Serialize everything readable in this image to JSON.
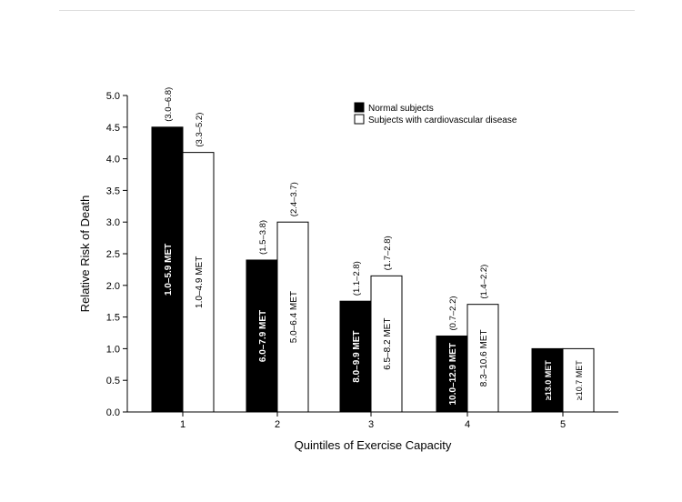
{
  "chart_data": {
    "type": "bar",
    "xlabel": "Quintiles of Exercise Capacity",
    "ylabel": "Relative Risk of Death",
    "ylim": [
      0,
      5.0
    ],
    "yticks": [
      "0.0",
      "0.5",
      "1.0",
      "1.5",
      "2.0",
      "2.5",
      "3.0",
      "3.5",
      "4.0",
      "4.5",
      "5.0"
    ],
    "categories": [
      "1",
      "2",
      "3",
      "4",
      "5"
    ],
    "legend_position": "top-right",
    "grid": false,
    "series": [
      {
        "name": "Normal subjects",
        "color": "#000000",
        "values": [
          4.5,
          2.4,
          1.75,
          1.2,
          1.0
        ],
        "bar_labels": [
          "1.0–5.9 MET",
          "6.0–7.9 MET",
          "8.0–9.9 MET",
          "10.0–12.9 MET",
          "≥13.0 MET"
        ],
        "ci_labels": [
          "(3.0–6.8)",
          "(1.5–3.8)",
          "(1.1–2.8)",
          "(0.7–2.2)",
          ""
        ]
      },
      {
        "name": "Subjects with cardiovascular disease",
        "color": "#ffffff",
        "values": [
          4.1,
          3.0,
          2.15,
          1.7,
          1.0
        ],
        "bar_labels": [
          "1.0–4.9 MET",
          "5.0–6.4 MET",
          "6.5–8.2 MET",
          "8.3–10.6 MET",
          "≥10.7 MET"
        ],
        "ci_labels": [
          "(3.3–5.2)",
          "(2.4–3.7)",
          "(1.7–2.8)",
          "(1.4–2.2)",
          ""
        ]
      }
    ]
  }
}
